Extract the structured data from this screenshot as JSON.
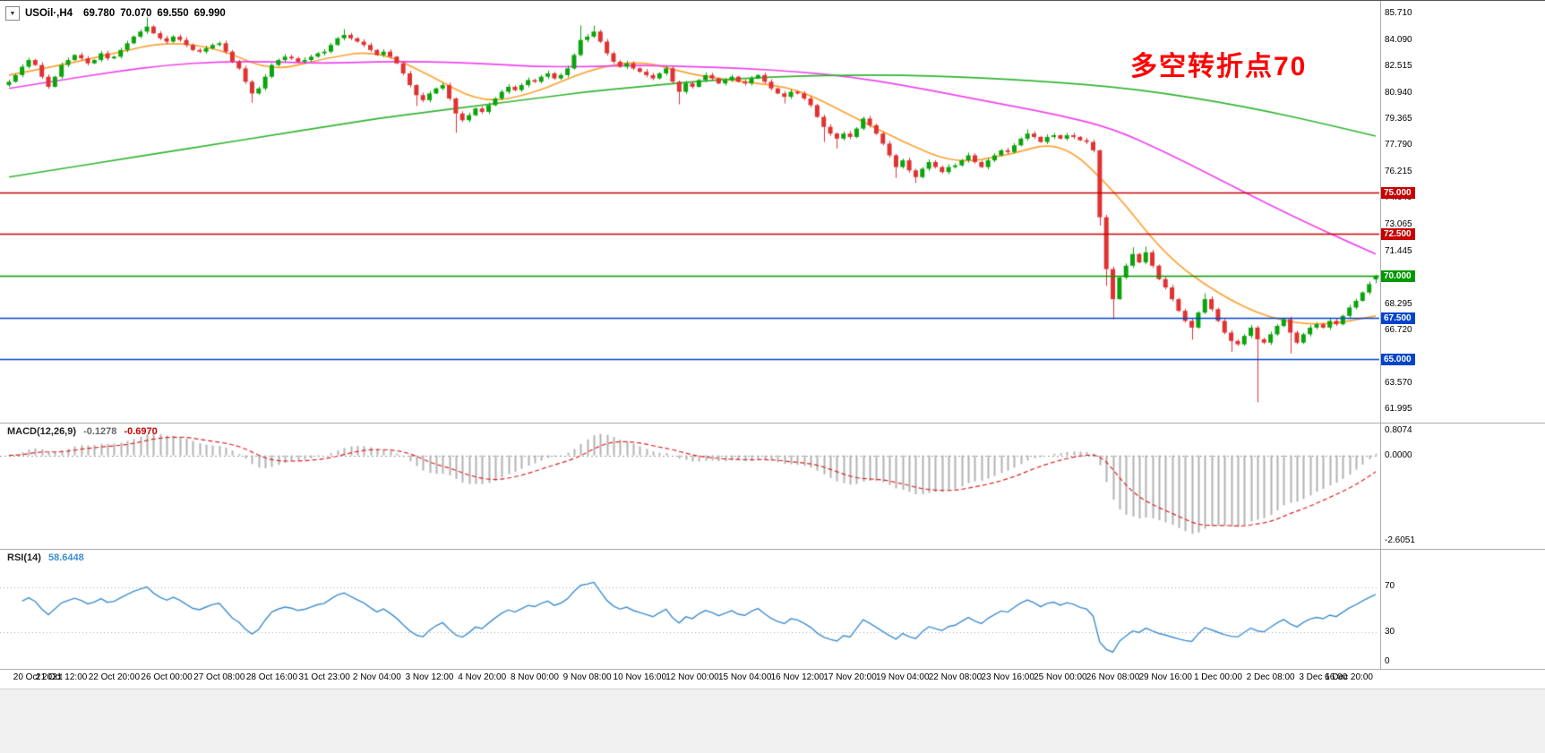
{
  "window": {
    "symbol_header": "USOil·,H4",
    "ohlc": {
      "open": "69.780",
      "high": "70.070",
      "low": "69.550",
      "close": "69.990"
    }
  },
  "annotation": {
    "text": "多空转折点70",
    "color": "#ff0000"
  },
  "chart_data": {
    "type": "candlestick",
    "symbol": "USOil",
    "timeframe": "H4",
    "candle_colors": {
      "up": "#0ca30c",
      "down": "#e03232"
    },
    "price_axis": {
      "max": 85.9,
      "min": 61.7,
      "visible_labels": [
        {
          "text": "85.710",
          "value": 85.71
        },
        {
          "text": "84.090",
          "value": 84.09
        },
        {
          "text": "82.515",
          "value": 82.515
        },
        {
          "text": "80.940",
          "value": 80.94
        },
        {
          "text": "79.365",
          "value": 79.365
        },
        {
          "text": "77.790",
          "value": 77.79
        },
        {
          "text": "76.215",
          "value": 76.215
        },
        {
          "text": "74.640",
          "value": 74.64
        },
        {
          "text": "73.065",
          "value": 73.065
        },
        {
          "text": "71.445",
          "value": 71.445
        },
        {
          "text": "68.295",
          "value": 68.295
        },
        {
          "text": "66.720",
          "value": 66.72
        },
        {
          "text": "63.570",
          "value": 63.57
        },
        {
          "text": "61.995",
          "value": 61.995
        }
      ]
    },
    "levels": [
      {
        "label": "75.000",
        "value": 75.0,
        "color": "#c80000"
      },
      {
        "label": "72.500",
        "value": 72.5,
        "color": "#c80000"
      },
      {
        "label": "70.000",
        "value": 70.0,
        "color": "#009900"
      },
      {
        "label": "67.500",
        "value": 67.5,
        "color": "#0044cc"
      },
      {
        "label": "65.000",
        "value": 65.0,
        "color": "#0044cc"
      }
    ],
    "time_labels": [
      "20 Oct 2021",
      "21 Oct 12:00",
      "22 Oct 20:00",
      "26 Oct 00:00",
      "27 Oct 08:00",
      "28 Oct 16:00",
      "31 Oct 23:00",
      "2 Nov 04:00",
      "3 Nov 12:00",
      "4 Nov 20:00",
      "8 Nov 00:00",
      "9 Nov 08:00",
      "10 Nov 16:00",
      "12 Nov 00:00",
      "15 Nov 04:00",
      "16 Nov 12:00",
      "17 Nov 20:00",
      "19 Nov 04:00",
      "22 Nov 08:00",
      "23 Nov 16:00",
      "25 Nov 00:00",
      "26 Nov 08:00",
      "29 Nov 16:00",
      "1 Dec 00:00",
      "2 Dec 08:00",
      "3 Dec 16:00",
      "6 Dec 20:00"
    ],
    "first_open": 81.4,
    "closes": [
      81.6,
      82.0,
      82.5,
      82.9,
      82.6,
      81.9,
      81.3,
      81.9,
      82.6,
      82.9,
      83.2,
      83.0,
      82.7,
      82.9,
      83.3,
      83.0,
      83.1,
      83.5,
      83.9,
      84.3,
      84.6,
      84.9,
      84.5,
      84.2,
      84.0,
      84.3,
      84.1,
      83.8,
      83.5,
      83.4,
      83.6,
      83.8,
      83.9,
      83.4,
      82.8,
      82.4,
      81.6,
      80.9,
      81.2,
      81.9,
      82.6,
      82.9,
      83.1,
      83.0,
      82.8,
      82.9,
      83.1,
      83.3,
      83.4,
      83.8,
      84.2,
      84.4,
      84.2,
      84.0,
      83.8,
      83.5,
      83.2,
      83.4,
      83.1,
      82.7,
      82.1,
      81.4,
      80.8,
      80.5,
      80.9,
      81.2,
      81.4,
      80.6,
      79.7,
      79.3,
      79.6,
      80.0,
      79.8,
      80.2,
      80.6,
      81.0,
      81.3,
      81.1,
      81.4,
      81.7,
      81.6,
      81.9,
      82.1,
      81.8,
      82.0,
      82.4,
      83.2,
      84.1,
      84.3,
      84.6,
      84.0,
      83.3,
      82.8,
      82.5,
      82.7,
      82.4,
      82.2,
      82.0,
      81.8,
      82.1,
      82.4,
      81.6,
      81.0,
      81.5,
      81.3,
      81.7,
      82.0,
      81.8,
      81.5,
      81.7,
      81.9,
      81.6,
      81.5,
      81.8,
      82.0,
      81.6,
      81.2,
      80.9,
      80.7,
      81.0,
      80.9,
      80.6,
      80.2,
      79.5,
      78.9,
      78.5,
      78.2,
      78.5,
      78.3,
      78.8,
      79.4,
      79.0,
      78.5,
      77.9,
      77.2,
      76.5,
      76.9,
      76.3,
      75.9,
      76.4,
      76.8,
      76.5,
      76.2,
      76.5,
      76.6,
      76.9,
      77.2,
      76.8,
      76.5,
      76.9,
      77.2,
      77.5,
      77.4,
      77.8,
      78.2,
      78.5,
      78.3,
      78.0,
      78.3,
      78.4,
      78.2,
      78.4,
      78.3,
      78.1,
      78.0,
      77.5,
      73.5,
      70.4,
      68.6,
      69.9,
      70.6,
      71.3,
      70.8,
      71.4,
      70.6,
      69.8,
      69.3,
      68.6,
      67.9,
      67.3,
      66.9,
      67.8,
      68.6,
      68.0,
      67.3,
      66.6,
      66.1,
      65.9,
      66.4,
      66.9,
      66.2,
      66.0,
      66.5,
      67.0,
      67.4,
      66.6,
      66.0,
      66.5,
      66.9,
      67.1,
      66.9,
      67.3,
      67.1,
      67.6,
      68.1,
      68.5,
      69.0,
      69.5,
      69.99
    ],
    "wick_overrides": {
      "21": {
        "h": 85.45
      },
      "37": {
        "l": 80.35
      },
      "51": {
        "h": 84.75
      },
      "62": {
        "l": 80.15
      },
      "68": {
        "l": 78.55
      },
      "87": {
        "h": 84.97
      },
      "89": {
        "h": 84.95
      },
      "102": {
        "l": 80.25
      },
      "118": {
        "l": 80.3
      },
      "124": {
        "l": 78.0
      },
      "126": {
        "l": 77.6
      },
      "135": {
        "l": 75.85
      },
      "138": {
        "l": 75.55
      },
      "155": {
        "h": 78.75
      },
      "166": {
        "l": 73.0
      },
      "167": {
        "l": 69.4
      },
      "168": {
        "l": 67.4
      },
      "171": {
        "h": 71.7
      },
      "173": {
        "h": 71.75
      },
      "180": {
        "l": 66.18
      },
      "182": {
        "h": 68.95
      },
      "186": {
        "l": 65.45
      },
      "190": {
        "l": 62.43
      },
      "195": {
        "l": 65.35
      },
      "208": {
        "o": 69.78,
        "h": 70.07,
        "l": 69.55,
        "c": 69.99
      }
    },
    "ma_lines": [
      {
        "name": "ma-fast-orange",
        "color": "#ffa133",
        "points": [
          82.0,
          82.6,
          83.3,
          84.0,
          83.6,
          82.2,
          83.0,
          83.5,
          82.0,
          80.3,
          80.9,
          82.3,
          82.9,
          82.0,
          81.6,
          81.2,
          79.6,
          78.0,
          76.7,
          77.2,
          78.1,
          75.2,
          71.2,
          68.9,
          67.4,
          67.0,
          67.6
        ]
      },
      {
        "name": "ma-mid-magenta",
        "color": "#ee44ee",
        "points": [
          81.2,
          81.7,
          82.2,
          82.6,
          82.8,
          82.8,
          82.7,
          82.8,
          82.8,
          82.7,
          82.5,
          82.5,
          82.6,
          82.5,
          82.4,
          82.2,
          81.9,
          81.4,
          80.8,
          80.2,
          79.6,
          78.8,
          77.4,
          75.8,
          74.2,
          72.7,
          71.3
        ]
      },
      {
        "name": "ma-slow-green",
        "color": "#33b533",
        "points": [
          75.9,
          76.4,
          76.9,
          77.4,
          77.9,
          78.4,
          78.9,
          79.4,
          79.8,
          80.2,
          80.6,
          81.0,
          81.3,
          81.6,
          81.8,
          81.95,
          82.0,
          82.0,
          81.9,
          81.75,
          81.55,
          81.3,
          80.9,
          80.4,
          79.8,
          79.1,
          78.35
        ]
      }
    ],
    "indicators": {
      "macd": {
        "label": "MACD(12,26,9)",
        "value_main": "-0.1278",
        "value_signal": "-0.6970",
        "fast": 12,
        "slow": 26,
        "signal": 9,
        "axis": {
          "top": "0.8074",
          "zero": "0.0000",
          "bottom": "-2.6051"
        },
        "bar_color": "#b3b3b3",
        "signal_color": "#dd2222"
      },
      "rsi": {
        "label": "RSI(14)",
        "value": "58.6448",
        "period": 14,
        "axis": [
          "70",
          "30",
          "0"
        ],
        "levels": [
          70,
          30
        ],
        "line_color": "#3e8ed0"
      }
    }
  }
}
